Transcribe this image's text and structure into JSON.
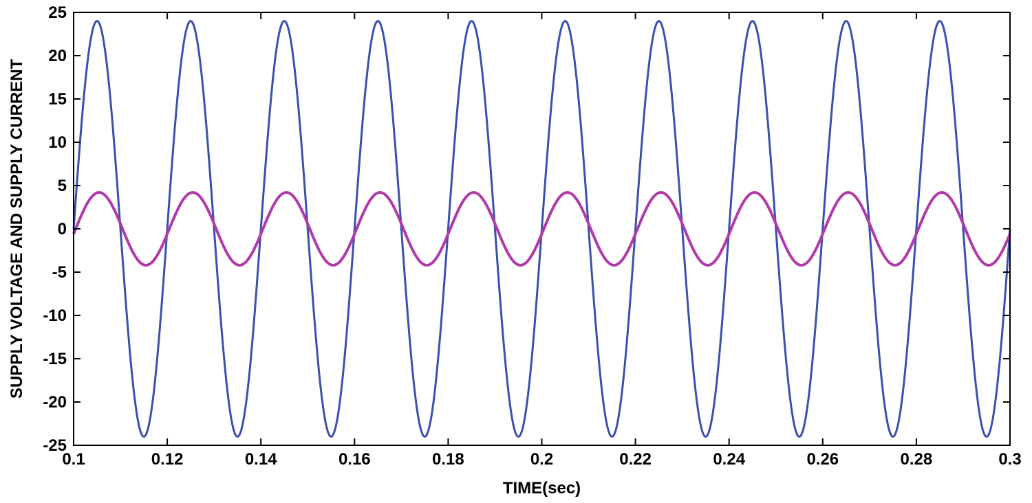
{
  "chart_data": {
    "type": "line",
    "title": "",
    "xlabel": "TIME(sec)",
    "ylabel": "SUPPLY VOLTAGE AND SUPPLY CURRENT",
    "xlim": [
      0.1,
      0.3
    ],
    "ylim": [
      -25,
      25
    ],
    "x_ticks": [
      0.1,
      0.12,
      0.14,
      0.16,
      0.18,
      0.2,
      0.22,
      0.24,
      0.26,
      0.28,
      0.3
    ],
    "x_tick_labels": [
      "0.1",
      "0.12",
      "0.14",
      "0.16",
      "0.18",
      "0.2",
      "0.22",
      "0.24",
      "0.26",
      "0.28",
      "0.3"
    ],
    "y_ticks": [
      -25,
      -20,
      -15,
      -10,
      -5,
      0,
      5,
      10,
      15,
      20,
      25
    ],
    "y_tick_labels": [
      "-25",
      "-20",
      "-15",
      "-10",
      "-5",
      "0",
      "5",
      "10",
      "15",
      "20",
      "25"
    ],
    "grid": false,
    "legend": "none",
    "series": [
      {
        "color": "#3a4fb0",
        "waveform": "sine",
        "amplitude": 24,
        "frequency_hz": 50,
        "phase_deg": 0
      },
      {
        "color": "#b03aa8",
        "waveform": "sine",
        "amplitude": 4.2,
        "frequency_hz": 50,
        "phase_deg": -8
      }
    ]
  }
}
